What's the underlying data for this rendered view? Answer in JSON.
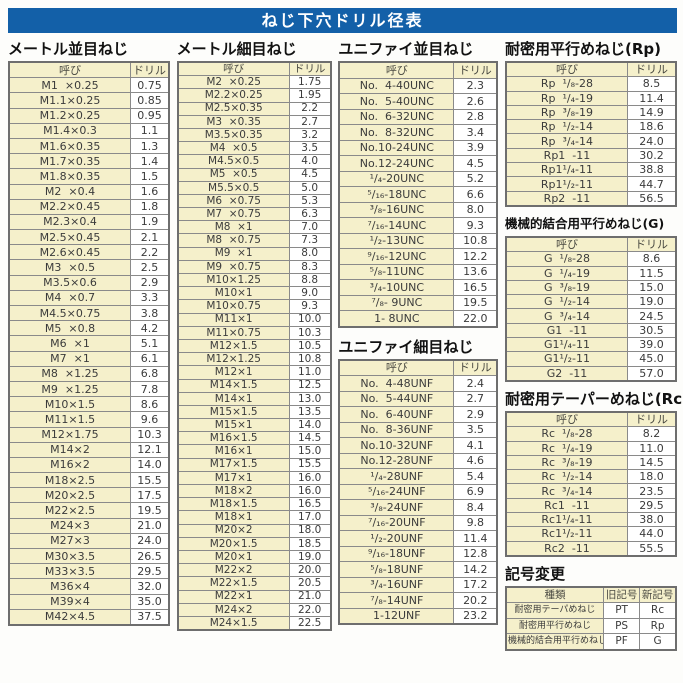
{
  "page_title": "ねじ下穴ドリル径表",
  "colors": {
    "accent_blue": "#1360a8",
    "cell_cream": "#f5f0cb",
    "border_gray": "#6e6e6e",
    "text_dark": "#3b3b3b"
  },
  "tables": {
    "metric_coarse": {
      "title": "メートル並目ねじ",
      "headers": [
        "呼び",
        "ドリル"
      ],
      "rows": [
        [
          "M1  ×0.25",
          "0.75"
        ],
        [
          "M1.1×0.25",
          "0.85"
        ],
        [
          "M1.2×0.25",
          "0.95"
        ],
        [
          "M1.4×0.3",
          "1.1"
        ],
        [
          "M1.6×0.35",
          "1.3"
        ],
        [
          "M1.7×0.35",
          "1.4"
        ],
        [
          "M1.8×0.35",
          "1.5"
        ],
        [
          "M2  ×0.4",
          "1.6"
        ],
        [
          "M2.2×0.45",
          "1.8"
        ],
        [
          "M2.3×0.4",
          "1.9"
        ],
        [
          "M2.5×0.45",
          "2.1"
        ],
        [
          "M2.6×0.45",
          "2.2"
        ],
        [
          "M3  ×0.5",
          "2.5"
        ],
        [
          "M3.5×0.6",
          "2.9"
        ],
        [
          "M4  ×0.7",
          "3.3"
        ],
        [
          "M4.5×0.75",
          "3.8"
        ],
        [
          "M5  ×0.8",
          "4.2"
        ],
        [
          "M6  ×1",
          "5.1"
        ],
        [
          "M7  ×1",
          "6.1"
        ],
        [
          "M8  ×1.25",
          "6.8"
        ],
        [
          "M9  ×1.25",
          "7.8"
        ],
        [
          "M10×1.5",
          "8.6"
        ],
        [
          "M11×1.5",
          "9.6"
        ],
        [
          "M12×1.75",
          "10.3"
        ],
        [
          "M14×2",
          "12.1"
        ],
        [
          "M16×2",
          "14.0"
        ],
        [
          "M18×2.5",
          "15.5"
        ],
        [
          "M20×2.5",
          "17.5"
        ],
        [
          "M22×2.5",
          "19.5"
        ],
        [
          "M24×3",
          "21.0"
        ],
        [
          "M27×3",
          "24.0"
        ],
        [
          "M30×3.5",
          "26.5"
        ],
        [
          "M33×3.5",
          "29.5"
        ],
        [
          "M36×4",
          "32.0"
        ],
        [
          "M39×4",
          "35.0"
        ],
        [
          "M42×4.5",
          "37.5"
        ]
      ]
    },
    "metric_fine": {
      "title": "メートル細目ねじ",
      "headers": [
        "呼び",
        "ドリル"
      ],
      "rows": [
        [
          "M2  ×0.25",
          "1.75"
        ],
        [
          "M2.2×0.25",
          "1.95"
        ],
        [
          "M2.5×0.35",
          "2.2"
        ],
        [
          "M3  ×0.35",
          "2.7"
        ],
        [
          "M3.5×0.35",
          "3.2"
        ],
        [
          "M4  ×0.5",
          "3.5"
        ],
        [
          "M4.5×0.5",
          "4.0"
        ],
        [
          "M5  ×0.5",
          "4.5"
        ],
        [
          "M5.5×0.5",
          "5.0"
        ],
        [
          "M6  ×0.75",
          "5.3"
        ],
        [
          "M7  ×0.75",
          "6.3"
        ],
        [
          "M8  ×1",
          "7.0"
        ],
        [
          "M8  ×0.75",
          "7.3"
        ],
        [
          "M9  ×1",
          "8.0"
        ],
        [
          "M9  ×0.75",
          "8.3"
        ],
        [
          "M10×1.25",
          "8.8"
        ],
        [
          "M10×1",
          "9.0"
        ],
        [
          "M10×0.75",
          "9.3"
        ],
        [
          "M11×1",
          "10.0"
        ],
        [
          "M11×0.75",
          "10.3"
        ],
        [
          "M12×1.5",
          "10.5"
        ],
        [
          "M12×1.25",
          "10.8"
        ],
        [
          "M12×1",
          "11.0"
        ],
        [
          "M14×1.5",
          "12.5"
        ],
        [
          "M14×1",
          "13.0"
        ],
        [
          "M15×1.5",
          "13.5"
        ],
        [
          "M15×1",
          "14.0"
        ],
        [
          "M16×1.5",
          "14.5"
        ],
        [
          "M16×1",
          "15.0"
        ],
        [
          "M17×1.5",
          "15.5"
        ],
        [
          "M17×1",
          "16.0"
        ],
        [
          "M18×2",
          "16.0"
        ],
        [
          "M18×1.5",
          "16.5"
        ],
        [
          "M18×1",
          "17.0"
        ],
        [
          "M20×2",
          "18.0"
        ],
        [
          "M20×1.5",
          "18.5"
        ],
        [
          "M20×1",
          "19.0"
        ],
        [
          "M22×2",
          "20.0"
        ],
        [
          "M22×1.5",
          "20.5"
        ],
        [
          "M22×1",
          "21.0"
        ],
        [
          "M24×2",
          "22.0"
        ],
        [
          "M24×1.5",
          "22.5"
        ]
      ]
    },
    "unified_coarse": {
      "title": "ユニファイ並目ねじ",
      "headers": [
        "呼び",
        "ドリル"
      ],
      "rows": [
        [
          "No.  4-40UNC",
          "2.3"
        ],
        [
          "No.  5-40UNC",
          "2.6"
        ],
        [
          "No.  6-32UNC",
          "2.8"
        ],
        [
          "No.  8-32UNC",
          "3.4"
        ],
        [
          "No.10-24UNC",
          "3.9"
        ],
        [
          "No.12-24UNC",
          "4.5"
        ],
        [
          "¹/₄-20UNC",
          "5.2"
        ],
        [
          "⁵/₁₆-18UNC",
          "6.6"
        ],
        [
          "³/₈-16UNC",
          "8.0"
        ],
        [
          "⁷/₁₆-14UNC",
          "9.3"
        ],
        [
          "¹/₂-13UNC",
          "10.8"
        ],
        [
          "⁹/₁₆-12UNC",
          "12.2"
        ],
        [
          "⁵/₈-11UNC",
          "13.6"
        ],
        [
          "³/₄-10UNC",
          "16.5"
        ],
        [
          "⁷/₈- 9UNC",
          "19.5"
        ],
        [
          "1- 8UNC",
          "22.0"
        ]
      ]
    },
    "unified_fine": {
      "title": "ユニファイ細目ねじ",
      "headers": [
        "呼び",
        "ドリル"
      ],
      "rows": [
        [
          "No.  4-48UNF",
          "2.4"
        ],
        [
          "No.  5-44UNF",
          "2.7"
        ],
        [
          "No.  6-40UNF",
          "2.9"
        ],
        [
          "No.  8-36UNF",
          "3.5"
        ],
        [
          "No.10-32UNF",
          "4.1"
        ],
        [
          "No.12-28UNF",
          "4.6"
        ],
        [
          "¹/₄-28UNF",
          "5.4"
        ],
        [
          "⁵/₁₆-24UNF",
          "6.9"
        ],
        [
          "³/₈-24UNF",
          "8.4"
        ],
        [
          "⁷/₁₆-20UNF",
          "9.8"
        ],
        [
          "¹/₂-20UNF",
          "11.4"
        ],
        [
          "⁹/₁₆-18UNF",
          "12.8"
        ],
        [
          "⁵/₈-18UNF",
          "14.2"
        ],
        [
          "³/₄-16UNF",
          "17.2"
        ],
        [
          "⁷/₈-14UNF",
          "20.2"
        ],
        [
          "1-12UNF",
          "23.2"
        ]
      ]
    },
    "rp": {
      "title": "耐密用平行めねじ(Rp)",
      "headers": [
        "呼び",
        "ドリル"
      ],
      "rows": [
        [
          "Rp  ¹/₈-28",
          "8.5"
        ],
        [
          "Rp  ¹/₄-19",
          "11.4"
        ],
        [
          "Rp  ³/₈-19",
          "14.9"
        ],
        [
          "Rp  ¹/₂-14",
          "18.6"
        ],
        [
          "Rp  ³/₄-14",
          "24.0"
        ],
        [
          "Rp1  -11",
          "30.2"
        ],
        [
          "Rp1¹/₄-11",
          "38.8"
        ],
        [
          "Rp1¹/₂-11",
          "44.7"
        ],
        [
          "Rp2  -11",
          "56.5"
        ]
      ]
    },
    "g": {
      "title": "機械的結合用平行めねじ(G)",
      "headers": [
        "呼び",
        "ドリル"
      ],
      "rows": [
        [
          "G  ¹/₈-28",
          "8.6"
        ],
        [
          "G  ¹/₄-19",
          "11.5"
        ],
        [
          "G  ³/₈-19",
          "15.0"
        ],
        [
          "G  ¹/₂-14",
          "19.0"
        ],
        [
          "G  ³/₄-14",
          "24.5"
        ],
        [
          "G1  -11",
          "30.5"
        ],
        [
          "G1¹/₄-11",
          "39.0"
        ],
        [
          "G1¹/₂-11",
          "45.0"
        ],
        [
          "G2  -11",
          "57.0"
        ]
      ]
    },
    "rc": {
      "title": "耐密用テーパーめねじ(Rc)",
      "headers": [
        "呼び",
        "ドリル"
      ],
      "rows": [
        [
          "Rc  ¹/₈-28",
          "8.2"
        ],
        [
          "Rc  ¹/₄-19",
          "11.0"
        ],
        [
          "Rc  ³/₈-19",
          "14.5"
        ],
        [
          "Rc  ¹/₂-14",
          "18.0"
        ],
        [
          "Rc  ³/₄-14",
          "23.5"
        ],
        [
          "Rc1  -11",
          "29.5"
        ],
        [
          "Rc1¹/₄-11",
          "38.0"
        ],
        [
          "Rc1¹/₂-11",
          "44.0"
        ],
        [
          "Rc2  -11",
          "55.5"
        ]
      ]
    },
    "symbol_change": {
      "title": "記号変更",
      "headers": [
        "種類",
        "旧記号",
        "新記号"
      ],
      "rows": [
        [
          "耐密用テーパめねじ",
          "PT",
          "Rc"
        ],
        [
          "耐密用平行めねじ",
          "PS",
          "Rp"
        ],
        [
          "機械的結合用平行めねじ",
          "PF",
          "G"
        ]
      ]
    }
  }
}
